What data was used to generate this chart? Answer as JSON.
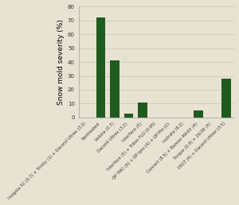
{
  "labels": [
    "Insignia SC (0.7) + Trinity (1) + Daconil Ultrex (3.2)",
    "Nontreated",
    "Velista (0.7)",
    "Daconil Ultrex (3.2)",
    "Interface (5)",
    "Interface (5) + Triton FLO (0.95)",
    "QP TMC (6) + QP Ipro (4) + QP Pro (2)",
    "Instrata (9.2)",
    "Concert (8.5) + Banner MAXX (4)",
    "Torque (0.9) + 26/36 (4)",
    "26GT (4) + Daconil Ultrex (3.5)"
  ],
  "values": [
    0,
    72,
    41,
    3,
    11,
    0,
    0,
    0,
    5,
    0,
    28
  ],
  "bar_color": "#1e5c1e",
  "ylabel": "Snow mold severity (%)",
  "ylim": [
    0,
    80
  ],
  "yticks": [
    0,
    10,
    20,
    30,
    40,
    50,
    60,
    70,
    80
  ],
  "background_color": "#e8e2d2",
  "plot_bg_color": "#e8e2d2",
  "grid_color": "#d0c8b8",
  "tick_fontsize": 5.0,
  "ylabel_fontsize": 6.5
}
